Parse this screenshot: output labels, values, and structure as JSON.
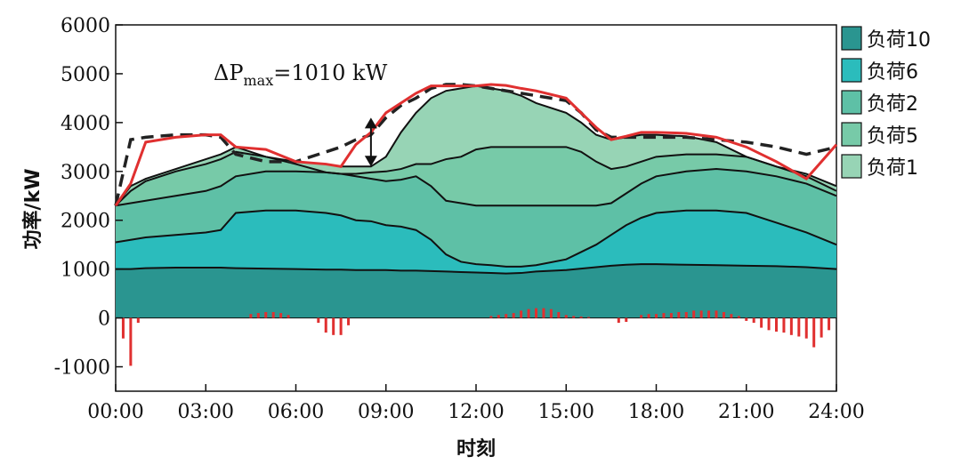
{
  "chart_data": {
    "type": "area",
    "title": "",
    "xlabel": "时刻",
    "ylabel": "功率/kW",
    "xlim": [
      0,
      24
    ],
    "ylim": [
      -1500,
      6000
    ],
    "x_tick_values": [
      0,
      3,
      6,
      9,
      12,
      15,
      18,
      21,
      24
    ],
    "x_tick_labels": [
      "00:00",
      "03:00",
      "06:00",
      "09:00",
      "12:00",
      "15:00",
      "18:00",
      "21:00",
      "24:00"
    ],
    "y_tick_values": [
      -1000,
      0,
      1000,
      2000,
      3000,
      4000,
      5000,
      6000
    ],
    "y_tick_labels": [
      "-1000",
      "0",
      "1000",
      "2000",
      "3000",
      "4000",
      "5000",
      "6000"
    ],
    "legend": [
      "负荷10",
      "负荷6",
      "负荷2",
      "负荷5",
      "负荷1"
    ],
    "colors": {
      "负荷10": "#2a9590",
      "负荷6": "#2bbcbc",
      "负荷2": "#5ec0a6",
      "负荷5": "#77caa8",
      "负荷1": "#97d4b5",
      "total_line": "#e03030",
      "dashed_line": "#222222",
      "bars": "#e03030"
    },
    "annotation": {
      "prefix": "ΔP",
      "subscript": "max",
      "suffix": "=1010 kW",
      "arrow_x": 8.5,
      "arrow_y": [
        3100,
        4100
      ]
    },
    "x": [
      0,
      0.5,
      1,
      2,
      3,
      3.5,
      4,
      5,
      6,
      7,
      7.5,
      8,
      8.5,
      9,
      9.5,
      10,
      10.5,
      11,
      11.5,
      12,
      12.5,
      13,
      13.5,
      14,
      15,
      15.5,
      16,
      16.5,
      17,
      17.5,
      18,
      19,
      20,
      21,
      22,
      23,
      24
    ],
    "series": [
      {
        "name": "负荷10",
        "cumulative": [
          1000,
          1000,
          1020,
          1030,
          1030,
          1030,
          1020,
          1010,
          1000,
          990,
          990,
          980,
          980,
          980,
          970,
          970,
          960,
          950,
          940,
          930,
          920,
          910,
          920,
          950,
          980,
          1010,
          1040,
          1070,
          1090,
          1100,
          1100,
          1090,
          1080,
          1070,
          1060,
          1040,
          1000
        ]
      },
      {
        "name": "负荷6",
        "cumulative": [
          1550,
          1600,
          1650,
          1700,
          1750,
          1800,
          2150,
          2200,
          2200,
          2150,
          2100,
          2000,
          1980,
          1900,
          1870,
          1800,
          1600,
          1300,
          1150,
          1100,
          1080,
          1050,
          1050,
          1080,
          1200,
          1350,
          1500,
          1700,
          1900,
          2050,
          2150,
          2200,
          2200,
          2150,
          1950,
          1750,
          1500
        ]
      },
      {
        "name": "负荷2",
        "cumulative": [
          2300,
          2350,
          2400,
          2500,
          2600,
          2700,
          2900,
          3000,
          3000,
          2980,
          2950,
          2900,
          2850,
          2800,
          2830,
          2900,
          2700,
          2400,
          2350,
          2300,
          2300,
          2300,
          2300,
          2300,
          2300,
          2300,
          2300,
          2350,
          2550,
          2750,
          2900,
          3000,
          3050,
          3000,
          2900,
          2750,
          2500
        ]
      },
      {
        "name": "负荷5",
        "cumulative": [
          2300,
          2600,
          2800,
          3000,
          3150,
          3250,
          3400,
          3300,
          3150,
          2980,
          2950,
          2950,
          2980,
          3000,
          3050,
          3150,
          3150,
          3250,
          3300,
          3450,
          3500,
          3500,
          3500,
          3500,
          3500,
          3400,
          3200,
          3050,
          3100,
          3200,
          3300,
          3350,
          3350,
          3300,
          3100,
          2900,
          2600
        ]
      },
      {
        "name": "负荷1",
        "cumulative": [
          2300,
          2700,
          2850,
          3050,
          3250,
          3350,
          3500,
          3300,
          3200,
          3150,
          3100,
          3100,
          3100,
          3300,
          3800,
          4200,
          4500,
          4650,
          4700,
          4750,
          4700,
          4650,
          4550,
          4400,
          4200,
          4000,
          3750,
          3650,
          3700,
          3750,
          3750,
          3720,
          3600,
          3300,
          3100,
          2950,
          2700
        ]
      }
    ],
    "total_line": [
      2300,
      2750,
      3600,
      3700,
      3750,
      3750,
      3500,
      3450,
      3200,
      3150,
      3100,
      3550,
      3800,
      4200,
      4400,
      4600,
      4750,
      4750,
      4750,
      4750,
      4780,
      4760,
      4700,
      4650,
      4500,
      4200,
      3900,
      3650,
      3720,
      3800,
      3800,
      3780,
      3700,
      3500,
      3200,
      2850,
      3550
    ],
    "dashed_line": [
      2300,
      3650,
      3700,
      3750,
      3750,
      3700,
      3350,
      3200,
      3200,
      3400,
      3500,
      3650,
      3750,
      4100,
      4350,
      4500,
      4700,
      4780,
      4780,
      4750,
      4700,
      4650,
      4600,
      4550,
      4450,
      4200,
      3850,
      3700,
      3700,
      3700,
      3700,
      3700,
      3650,
      3600,
      3500,
      3350,
      3500
    ],
    "bars": {
      "x": [
        0.25,
        0.5,
        0.75,
        4.5,
        4.75,
        5.0,
        5.25,
        5.5,
        5.75,
        6.75,
        7.0,
        7.25,
        7.5,
        7.75,
        12.5,
        12.75,
        13.0,
        13.25,
        13.5,
        13.75,
        14.0,
        14.25,
        14.5,
        14.75,
        15.0,
        15.25,
        15.5,
        15.75,
        16.75,
        17.0,
        17.5,
        17.75,
        18.0,
        18.25,
        18.5,
        18.75,
        19.0,
        19.25,
        19.5,
        19.75,
        20.0,
        20.25,
        20.5,
        20.75,
        21.0,
        21.25,
        21.5,
        21.75,
        22.0,
        22.25,
        22.5,
        22.75,
        23.0,
        23.25,
        23.5,
        23.75
      ],
      "values": [
        -420,
        -980,
        -100,
        80,
        100,
        120,
        120,
        100,
        60,
        -100,
        -300,
        -350,
        -350,
        -150,
        40,
        60,
        80,
        100,
        150,
        180,
        200,
        200,
        180,
        120,
        60,
        40,
        30,
        20,
        -100,
        -80,
        60,
        80,
        80,
        100,
        100,
        120,
        120,
        150,
        150,
        150,
        150,
        120,
        80,
        40,
        -60,
        -100,
        -200,
        -250,
        -280,
        -300,
        -350,
        -380,
        -420,
        -600,
        -400,
        -250
      ]
    }
  }
}
